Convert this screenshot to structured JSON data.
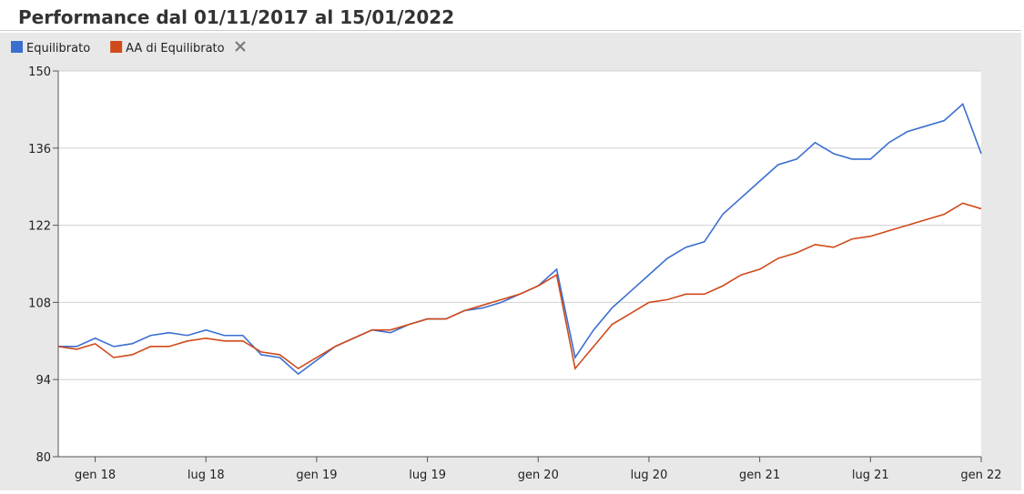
{
  "chart_data": {
    "type": "line",
    "title": "Performance dal 01/11/2017 al 15/01/2022",
    "x": [
      "2017-11",
      "2017-12",
      "2018-01",
      "2018-02",
      "2018-03",
      "2018-04",
      "2018-05",
      "2018-06",
      "2018-07",
      "2018-08",
      "2018-09",
      "2018-10",
      "2018-11",
      "2018-12",
      "2019-01",
      "2019-02",
      "2019-03",
      "2019-04",
      "2019-05",
      "2019-06",
      "2019-07",
      "2019-08",
      "2019-09",
      "2019-10",
      "2019-11",
      "2019-12",
      "2020-01",
      "2020-02",
      "2020-03",
      "2020-04",
      "2020-05",
      "2020-06",
      "2020-07",
      "2020-08",
      "2020-09",
      "2020-10",
      "2020-11",
      "2020-12",
      "2021-01",
      "2021-02",
      "2021-03",
      "2021-04",
      "2021-05",
      "2021-06",
      "2021-07",
      "2021-08",
      "2021-09",
      "2021-10",
      "2021-11",
      "2021-12",
      "2022-01"
    ],
    "series": [
      {
        "name": "Equilibrato",
        "color": "#3a6fd0",
        "values": [
          100,
          100,
          101.5,
          100,
          100.5,
          102,
          102.5,
          102,
          103,
          102,
          102,
          98.5,
          98,
          95,
          97.5,
          100,
          101.5,
          103,
          102.5,
          104,
          105,
          105,
          106.5,
          107,
          108,
          109.5,
          111,
          114,
          98,
          103,
          107,
          110,
          113,
          116,
          118,
          119,
          124,
          127,
          130,
          133,
          134,
          137,
          135,
          134,
          134,
          137,
          139,
          140,
          141,
          144,
          135
        ]
      },
      {
        "name": "AA di Equilibrato",
        "color": "#d04a1a",
        "values": [
          100,
          99.5,
          100.5,
          98,
          98.5,
          100,
          100,
          101,
          101.5,
          101,
          101,
          99,
          98.5,
          96,
          98,
          100,
          101.5,
          103,
          103,
          104,
          105,
          105,
          106.5,
          107.5,
          108.5,
          109.5,
          111,
          113,
          96,
          100,
          104,
          106,
          108,
          108.5,
          109.5,
          109.5,
          111,
          113,
          114,
          116,
          117,
          118.5,
          118,
          119.5,
          120,
          121,
          122,
          123,
          124,
          126,
          125
        ]
      }
    ],
    "xlim": [
      "2017-11",
      "2022-01"
    ],
    "xticks": [
      {
        "value": "2018-01",
        "label": "gen 18"
      },
      {
        "value": "2018-07",
        "label": "lug 18"
      },
      {
        "value": "2019-01",
        "label": "gen 19"
      },
      {
        "value": "2019-07",
        "label": "lug 19"
      },
      {
        "value": "2020-01",
        "label": "gen 20"
      },
      {
        "value": "2020-07",
        "label": "lug 20"
      },
      {
        "value": "2021-01",
        "label": "gen 21"
      },
      {
        "value": "2021-07",
        "label": "lug 21"
      },
      {
        "value": "2022-01",
        "label": "gen 22"
      }
    ],
    "ylim": [
      80,
      150
    ],
    "yticks": [
      80,
      94,
      108,
      122,
      136,
      150
    ],
    "grid": true
  }
}
